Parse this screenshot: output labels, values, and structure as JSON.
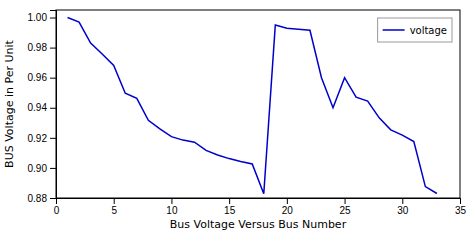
{
  "chart_data": {
    "type": "line",
    "xlabel": "Bus Voltage Versus Bus Number",
    "ylabel": "BUS Voltage in Per Unit",
    "x": [
      1,
      2,
      3,
      4,
      5,
      6,
      7,
      8,
      9,
      10,
      11,
      12,
      13,
      14,
      15,
      16,
      17,
      18,
      19,
      20,
      21,
      22,
      23,
      24,
      25,
      26,
      27,
      28,
      29,
      30,
      31,
      32,
      33
    ],
    "series": [
      {
        "name": "voltage",
        "color": "#0000cc",
        "values": [
          1.0,
          0.997,
          0.983,
          0.9758,
          0.9681,
          0.9497,
          0.9463,
          0.9317,
          0.9259,
          0.9208,
          0.9185,
          0.9171,
          0.9117,
          0.9086,
          0.9062,
          0.9043,
          0.9026,
          0.8828,
          0.995,
          0.9929,
          0.9922,
          0.9915,
          0.96,
          0.94,
          0.96,
          0.947,
          0.9444,
          0.9333,
          0.9253,
          0.9218,
          0.9175,
          0.8876,
          0.883
        ]
      }
    ],
    "xlim": [
      0,
      35
    ],
    "ylim": [
      0.88,
      1.005
    ],
    "xticks": [
      0,
      5,
      10,
      15,
      20,
      25,
      30,
      35
    ],
    "yticks": [
      0.88,
      {
        "value": 0.9,
        "label": "0.90"
      },
      0.92,
      0.94,
      0.96,
      0.98,
      {
        "value": 1.0,
        "label": "1.00"
      }
    ],
    "legend": "upper right",
    "grid": false
  }
}
